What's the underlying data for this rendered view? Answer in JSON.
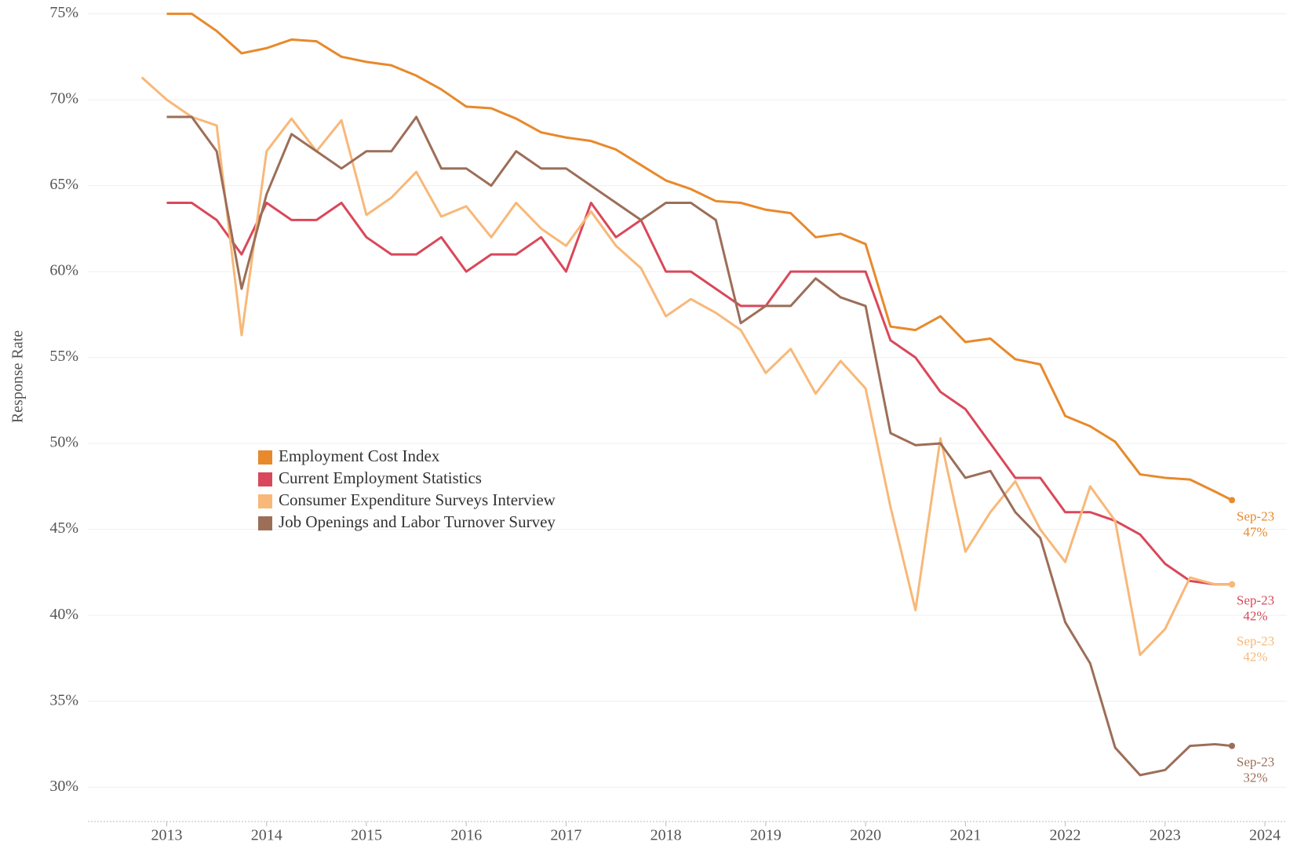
{
  "chart_data": {
    "type": "line",
    "y_label": "Response Rate",
    "x": [
      2012.75,
      2013,
      2013.25,
      2013.5,
      2013.75,
      2014,
      2014.25,
      2014.5,
      2014.75,
      2015,
      2015.25,
      2015.5,
      2015.75,
      2016,
      2016.25,
      2016.5,
      2016.75,
      2017,
      2017.25,
      2017.5,
      2017.75,
      2018,
      2018.25,
      2018.5,
      2018.75,
      2019,
      2019.25,
      2019.5,
      2019.75,
      2020,
      2020.25,
      2020.5,
      2020.75,
      2021,
      2021.25,
      2021.5,
      2021.75,
      2022,
      2022.25,
      2022.5,
      2022.75,
      2023,
      2023.25,
      2023.5,
      2023.67
    ],
    "series": [
      {
        "name": "Employment Cost Index",
        "color": "#e8892b",
        "end_label": [
          "Sep-23",
          "47%"
        ],
        "values": [
          null,
          75,
          75,
          74,
          72.7,
          73,
          73.5,
          73.4,
          72.5,
          72.2,
          72,
          71.4,
          70.6,
          69.6,
          69.5,
          68.9,
          68.1,
          67.8,
          67.6,
          67.1,
          66.2,
          65.3,
          64.8,
          64.1,
          64,
          63.6,
          63.4,
          62,
          62.2,
          61.6,
          56.8,
          56.6,
          57.4,
          55.9,
          56.1,
          54.9,
          54.6,
          51.6,
          51,
          50.1,
          48.2,
          48,
          47.9,
          47.2,
          46.7
        ]
      },
      {
        "name": "Current Employment Statistics",
        "color": "#d9485a",
        "end_label": [
          "Sep-23",
          "42%"
        ],
        "values": [
          null,
          64,
          64,
          63,
          61,
          64,
          63,
          63,
          64,
          62,
          61,
          61,
          62,
          60,
          61,
          61,
          62,
          60,
          64,
          62,
          63,
          60,
          60,
          59,
          58,
          58,
          60,
          60,
          60,
          60,
          56,
          55,
          53,
          52,
          50,
          48,
          48,
          46,
          46,
          45.5,
          44.7,
          43,
          42,
          41.8,
          41.8
        ]
      },
      {
        "name": "Consumer Expenditure Surveys Interview",
        "color": "#f8b878",
        "end_label": [
          "Sep-23",
          "42%"
        ],
        "values": [
          71.3,
          70,
          69,
          68.5,
          56.3,
          67,
          68.9,
          67,
          68.8,
          63.3,
          64.3,
          65.8,
          63.2,
          63.8,
          62,
          64,
          62.5,
          61.5,
          63.5,
          61.5,
          60.2,
          57.4,
          58.4,
          57.6,
          56.6,
          54.1,
          55.5,
          52.9,
          54.8,
          53.2,
          46.3,
          40.3,
          50.3,
          43.7,
          46,
          47.8,
          45,
          43.1,
          47.5,
          45.5,
          37.7,
          39.2,
          42.2,
          41.8,
          41.8
        ]
      },
      {
        "name": "Job Openings and Labor Turnover Survey",
        "color": "#9c6e58",
        "end_label": [
          "Sep-23",
          "32%"
        ],
        "values": [
          null,
          69,
          69,
          67,
          59,
          64.5,
          68,
          67,
          66,
          67,
          67,
          69,
          66,
          66,
          65,
          67,
          66,
          66,
          65,
          64,
          63,
          64,
          64,
          63,
          57,
          58,
          58,
          59.6,
          58.5,
          58,
          50.6,
          49.9,
          50,
          48,
          48.4,
          46,
          44.5,
          39.6,
          37.2,
          32.3,
          30.7,
          31,
          32.4,
          32.5,
          32.4
        ]
      }
    ],
    "xlim": [
      2012.21,
      2024.22
    ],
    "xticks": [
      2013,
      2014,
      2015,
      2016,
      2017,
      2018,
      2019,
      2020,
      2021,
      2022,
      2023,
      2024
    ],
    "ylim": [
      28,
      75.3
    ],
    "yticks": [
      {
        "value": 30,
        "label": "30%"
      },
      {
        "value": 35,
        "label": "35%"
      },
      {
        "value": 40,
        "label": "40%"
      },
      {
        "value": 45,
        "label": "45%"
      },
      {
        "value": 50,
        "label": "50%"
      },
      {
        "value": 55,
        "label": "55%"
      },
      {
        "value": 60,
        "label": "60%"
      },
      {
        "value": 65,
        "label": "65%"
      },
      {
        "value": 70,
        "label": "70%"
      },
      {
        "value": 75,
        "label": "75%"
      }
    ],
    "grid": true,
    "legend": "center-left"
  }
}
